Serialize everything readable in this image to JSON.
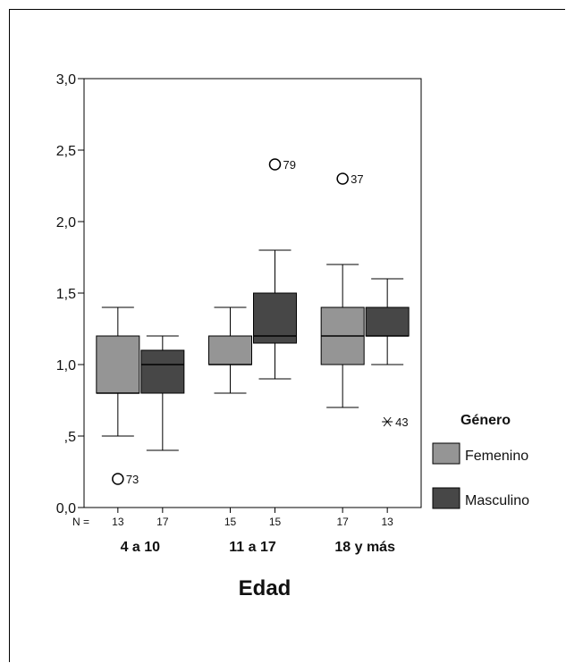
{
  "chart_data": {
    "type": "boxplot",
    "xlabel": "Edad",
    "ylabel": "",
    "ylim": [
      0,
      3
    ],
    "yticks": [
      {
        "value": 0.0,
        "label": "0,0"
      },
      {
        "value": 0.5,
        "label": ",5"
      },
      {
        "value": 1.0,
        "label": "1,0"
      },
      {
        "value": 1.5,
        "label": "1,5"
      },
      {
        "value": 2.0,
        "label": "2,0"
      },
      {
        "value": 2.5,
        "label": "2,5"
      },
      {
        "value": 3.0,
        "label": "3,0"
      }
    ],
    "n_label": "N =",
    "categories": [
      "4 a 10",
      "11 a 17",
      "18 y más"
    ],
    "legend": {
      "title": "Género",
      "position": "right",
      "entries": [
        {
          "name": "Femenino",
          "color": "#959595"
        },
        {
          "name": "Masculino",
          "color": "#474747"
        }
      ]
    },
    "boxes": [
      {
        "category": "4 a 10",
        "group": "Femenino",
        "n": "13",
        "min": 0.5,
        "q1": 0.8,
        "median": 0.8,
        "q3": 1.2,
        "max": 1.4,
        "outliers": [
          {
            "value": 0.2,
            "label": "73",
            "marker": "circle"
          }
        ]
      },
      {
        "category": "4 a 10",
        "group": "Masculino",
        "n": "17",
        "min": 0.4,
        "q1": 0.8,
        "median": 1.0,
        "q3": 1.1,
        "max": 1.2,
        "outliers": []
      },
      {
        "category": "11 a 17",
        "group": "Femenino",
        "n": "15",
        "min": 0.8,
        "q1": 1.0,
        "median": 1.0,
        "q3": 1.2,
        "max": 1.4,
        "outliers": []
      },
      {
        "category": "11 a 17",
        "group": "Masculino",
        "n": "15",
        "min": 0.9,
        "q1": 1.15,
        "median": 1.2,
        "q3": 1.5,
        "max": 1.8,
        "outliers": [
          {
            "value": 2.4,
            "label": "79",
            "marker": "circle"
          }
        ]
      },
      {
        "category": "18 y más",
        "group": "Femenino",
        "n": "17",
        "min": 0.7,
        "q1": 1.0,
        "median": 1.2,
        "q3": 1.4,
        "max": 1.7,
        "outliers": [
          {
            "value": 2.3,
            "label": "37",
            "marker": "circle"
          }
        ]
      },
      {
        "category": "18 y más",
        "group": "Masculino",
        "n": "13",
        "min": 1.0,
        "q1": 1.2,
        "median": 1.2,
        "q3": 1.4,
        "max": 1.6,
        "outliers": [
          {
            "value": 0.6,
            "label": "43",
            "marker": "star"
          }
        ]
      }
    ]
  }
}
